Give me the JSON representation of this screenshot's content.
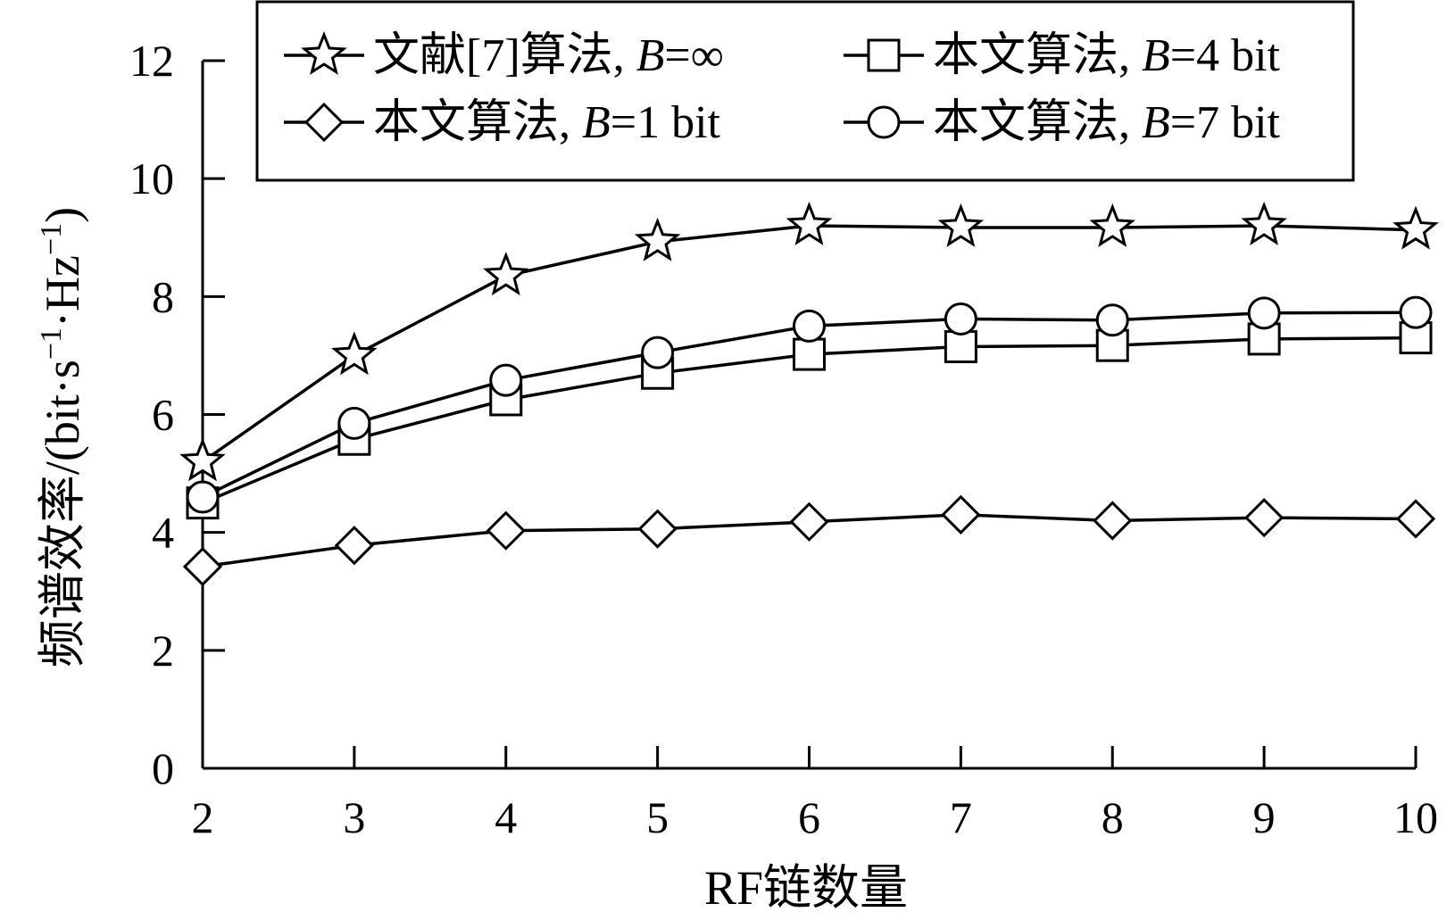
{
  "chart_data": {
    "type": "line",
    "x": [
      2,
      3,
      4,
      5,
      6,
      7,
      8,
      9,
      10
    ],
    "xlabel": "RF链数量",
    "ylabel": "频谱效率/(bit·s⁻¹·Hz⁻¹)",
    "ylabel_prefix": "频谱效率/(bit·s",
    "ylabel_sup1": "−1",
    "ylabel_mid": "·Hz",
    "ylabel_sup2": "−1",
    "ylabel_suffix": ")",
    "xlim": [
      2,
      10
    ],
    "ylim": [
      0,
      12
    ],
    "xticks": [
      2,
      3,
      4,
      5,
      6,
      7,
      8,
      9,
      10
    ],
    "yticks": [
      0,
      2,
      4,
      6,
      8,
      10,
      12
    ],
    "grid": false,
    "legend_position": "top",
    "series": [
      {
        "name": "文献[7]算法, B=∞",
        "label_main": "文献[7]算法, ",
        "label_var": "B",
        "label_rest": "=∞",
        "marker": "star",
        "values": [
          5.2,
          7.0,
          8.35,
          8.93,
          9.2,
          9.17,
          9.17,
          9.2,
          9.13
        ]
      },
      {
        "name": "本文算法, B=4 bit",
        "label_main": "本文算法, ",
        "label_var": "B",
        "label_rest": "=4 bit",
        "marker": "square",
        "values": [
          4.5,
          5.58,
          6.25,
          6.7,
          7.02,
          7.15,
          7.17,
          7.28,
          7.3
        ]
      },
      {
        "name": "本文算法, B=1 bit",
        "label_main": "本文算法, ",
        "label_var": "B",
        "label_rest": "=1 bit",
        "marker": "diamond",
        "values": [
          3.42,
          3.78,
          4.03,
          4.06,
          4.18,
          4.3,
          4.2,
          4.25,
          4.23
        ]
      },
      {
        "name": "本文算法, B=7 bit",
        "label_main": "本文算法, ",
        "label_var": "B",
        "label_rest": "=7 bit",
        "marker": "circle",
        "values": [
          4.6,
          5.85,
          6.58,
          7.05,
          7.5,
          7.62,
          7.6,
          7.72,
          7.73
        ]
      }
    ]
  }
}
